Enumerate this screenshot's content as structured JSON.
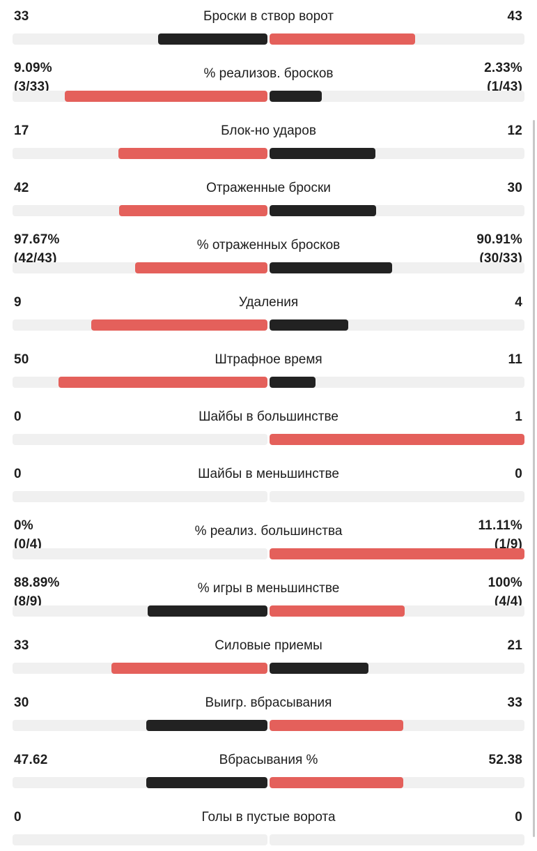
{
  "colors": {
    "home": "#222222",
    "away": "#e4605b",
    "track": "#f0f0f0"
  },
  "stats": [
    {
      "label": "Броски в створ ворот",
      "home_value": "33",
      "home_sub": "",
      "away_value": "43",
      "away_sub": "",
      "home_share": 0.43,
      "away_share": 0.57,
      "home_color": "#222222",
      "away_color": "#e4605b"
    },
    {
      "label": "% реализов. бросков",
      "home_value": "9.09%",
      "home_sub": "(3/33)",
      "away_value": "2.33%",
      "away_sub": "(1/43)",
      "home_share": 0.795,
      "away_share": 0.205,
      "home_color": "#e4605b",
      "away_color": "#222222"
    },
    {
      "label": "Блок-но ударов",
      "home_value": "17",
      "home_sub": "",
      "away_value": "12",
      "away_sub": "",
      "home_share": 0.586,
      "away_share": 0.414,
      "home_color": "#e4605b",
      "away_color": "#222222"
    },
    {
      "label": "Отраженные броски",
      "home_value": "42",
      "home_sub": "",
      "away_value": "30",
      "away_sub": "",
      "home_share": 0.583,
      "away_share": 0.417,
      "home_color": "#e4605b",
      "away_color": "#222222"
    },
    {
      "label": "% отраженных бросков",
      "home_value": "97.67%",
      "home_sub": "(42/43)",
      "away_value": "90.91%",
      "away_sub": "(30/33)",
      "home_share": 0.518,
      "away_share": 0.482,
      "home_color": "#e4605b",
      "away_color": "#222222"
    },
    {
      "label": "Удаления",
      "home_value": "9",
      "home_sub": "",
      "away_value": "4",
      "away_sub": "",
      "home_share": 0.692,
      "away_share": 0.308,
      "home_color": "#e4605b",
      "away_color": "#222222"
    },
    {
      "label": "Штрафное время",
      "home_value": "50",
      "home_sub": "",
      "away_value": "11",
      "away_sub": "",
      "home_share": 0.82,
      "away_share": 0.18,
      "home_color": "#e4605b",
      "away_color": "#222222"
    },
    {
      "label": "Шайбы в большинстве",
      "home_value": "0",
      "home_sub": "",
      "away_value": "1",
      "away_sub": "",
      "home_share": 0,
      "away_share": 1,
      "home_color": "#222222",
      "away_color": "#e4605b"
    },
    {
      "label": "Шайбы в меньшинстве",
      "home_value": "0",
      "home_sub": "",
      "away_value": "0",
      "away_sub": "",
      "home_share": 0,
      "away_share": 0,
      "home_color": "#222222",
      "away_color": "#e4605b"
    },
    {
      "label": "% реализ. большинства",
      "home_value": "0%",
      "home_sub": "(0/4)",
      "away_value": "11.11%",
      "away_sub": "(1/9)",
      "home_share": 0,
      "away_share": 1,
      "home_color": "#222222",
      "away_color": "#e4605b"
    },
    {
      "label": "% игры в меньшинстве",
      "home_value": "88.89%",
      "home_sub": "(8/9)",
      "away_value": "100%",
      "away_sub": "(4/4)",
      "home_share": 0.47,
      "away_share": 0.53,
      "home_color": "#222222",
      "away_color": "#e4605b"
    },
    {
      "label": "Силовые приемы",
      "home_value": "33",
      "home_sub": "",
      "away_value": "21",
      "away_sub": "",
      "home_share": 0.611,
      "away_share": 0.389,
      "home_color": "#e4605b",
      "away_color": "#222222"
    },
    {
      "label": "Выигр. вбрасывания",
      "home_value": "30",
      "home_sub": "",
      "away_value": "33",
      "away_sub": "",
      "home_share": 0.476,
      "away_share": 0.524,
      "home_color": "#222222",
      "away_color": "#e4605b"
    },
    {
      "label": "Вбрасывания %",
      "home_value": "47.62",
      "home_sub": "",
      "away_value": "52.38",
      "away_sub": "",
      "home_share": 0.476,
      "away_share": 0.524,
      "home_color": "#222222",
      "away_color": "#e4605b"
    },
    {
      "label": "Голы в пустые ворота",
      "home_value": "0",
      "home_sub": "",
      "away_value": "0",
      "away_sub": "",
      "home_share": 0,
      "away_share": 0,
      "home_color": "#222222",
      "away_color": "#e4605b"
    }
  ]
}
